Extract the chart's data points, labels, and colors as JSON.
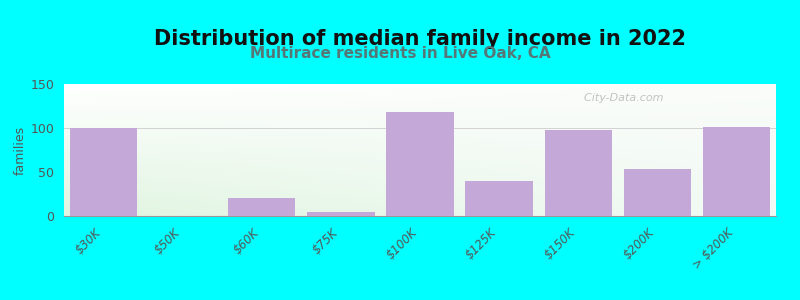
{
  "title": "Distribution of median family income in 2022",
  "subtitle": "Multirace residents in Live Oak, CA",
  "ylabel": "families",
  "categories": [
    "$30K",
    "$50K",
    "$60K",
    "$75K",
    "$100K",
    "$125K",
    "$150K",
    "$200K",
    "> $200K"
  ],
  "values": [
    100,
    0,
    20,
    5,
    118,
    40,
    98,
    53,
    101
  ],
  "bar_color": "#c4a8d8",
  "bg_color": "#00ffff",
  "ylim": [
    0,
    150
  ],
  "yticks": [
    0,
    50,
    100,
    150
  ],
  "watermark": "  City-Data.com",
  "title_fontsize": 15,
  "subtitle_fontsize": 11,
  "subtitle_color": "#557777"
}
